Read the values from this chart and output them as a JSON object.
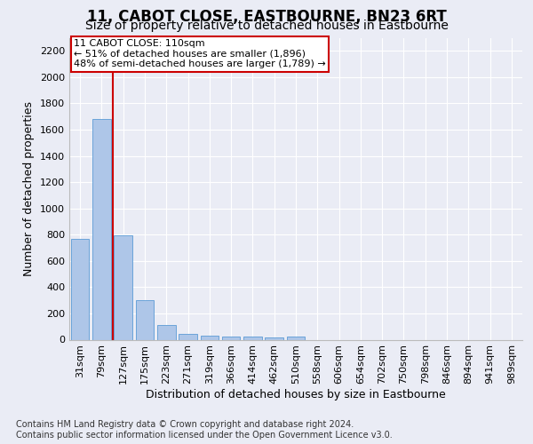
{
  "title": "11, CABOT CLOSE, EASTBOURNE, BN23 6RT",
  "subtitle": "Size of property relative to detached houses in Eastbourne",
  "xlabel": "Distribution of detached houses by size in Eastbourne",
  "ylabel": "Number of detached properties",
  "footer_line1": "Contains HM Land Registry data © Crown copyright and database right 2024.",
  "footer_line2": "Contains public sector information licensed under the Open Government Licence v3.0.",
  "annotation_line1": "11 CABOT CLOSE: 110sqm",
  "annotation_line2": "← 51% of detached houses are smaller (1,896)",
  "annotation_line3": "48% of semi-detached houses are larger (1,789) →",
  "bar_labels": [
    "31sqm",
    "79sqm",
    "127sqm",
    "175sqm",
    "223sqm",
    "271sqm",
    "319sqm",
    "366sqm",
    "414sqm",
    "462sqm",
    "510sqm",
    "558sqm",
    "606sqm",
    "654sqm",
    "702sqm",
    "750sqm",
    "798sqm",
    "846sqm",
    "894sqm",
    "941sqm",
    "989sqm"
  ],
  "bar_values": [
    770,
    1680,
    795,
    300,
    110,
    42,
    32,
    25,
    22,
    18,
    22,
    0,
    0,
    0,
    0,
    0,
    0,
    0,
    0,
    0,
    0
  ],
  "bar_color": "#aec6e8",
  "bar_edgecolor": "#5b9bd5",
  "redline_x": 1.5,
  "ylim": [
    0,
    2300
  ],
  "yticks": [
    0,
    200,
    400,
    600,
    800,
    1000,
    1200,
    1400,
    1600,
    1800,
    2000,
    2200
  ],
  "bg_color": "#eaecf5",
  "plot_bg_color": "#eaecf5",
  "grid_color": "#ffffff",
  "title_fontsize": 12,
  "subtitle_fontsize": 10,
  "ylabel_fontsize": 9,
  "xlabel_fontsize": 9,
  "tick_fontsize": 8,
  "footer_fontsize": 7,
  "annotation_fontsize": 8,
  "redline_color": "#cc0000"
}
